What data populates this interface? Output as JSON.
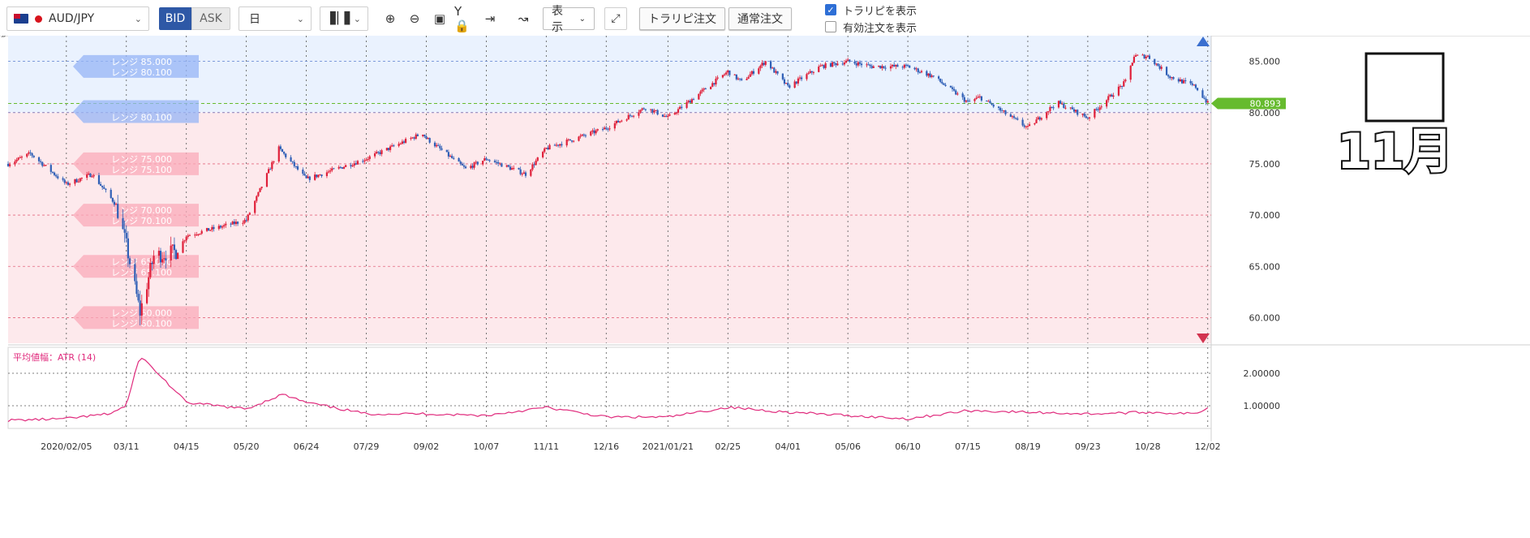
{
  "toolbar": {
    "symbol": "AUD/JPY",
    "bid_label": "BID",
    "ask_label": "ASK",
    "period": "日",
    "display_label": "表示",
    "trap_order_label": "トラリピ注文",
    "normal_order_label": "通常注文",
    "show_trap_label": "トラリピを表示",
    "show_trap_checked": true,
    "show_active_label": "有効注文を表示",
    "show_active_checked": false
  },
  "colors": {
    "up": "#e0203a",
    "down": "#2f5fb6",
    "upper_zone": "#eaf2fe",
    "lower_zone": "#fde9ec",
    "current_price": "#66bb2e",
    "atr_line": "#e02b7d"
  },
  "annotation": {
    "text": "11月"
  },
  "price_axis": {
    "ticks": [
      "85.000",
      "80.000",
      "75.000",
      "70.000",
      "65.000",
      "60.000"
    ],
    "current_price": "80.893"
  },
  "indicator": {
    "label": "平均値幅：ATR (14)",
    "ticks": [
      "2.00000",
      "1.00000"
    ]
  },
  "range_labels": [
    {
      "top": "レンジ 85.000",
      "bottom": "レンジ 80.100",
      "color": "blue",
      "price": 84.5
    },
    {
      "top": "",
      "bottom": "レンジ 80.100",
      "color": "blue",
      "price": 80.1
    },
    {
      "top": "レンジ 75.000",
      "bottom": "レンジ 75.100",
      "color": "red",
      "price": 75.0
    },
    {
      "top": "レンジ 70.000",
      "bottom": "レンジ 70.100",
      "color": "red",
      "price": 70.0
    },
    {
      "top": "レンジ 65.000",
      "bottom": "レンジ 65.100",
      "color": "red",
      "price": 65.0
    },
    {
      "top": "レンジ 60.000",
      "bottom": "レンジ 60.100",
      "color": "red",
      "price": 60.0
    }
  ],
  "chart_data": {
    "type": "candlestick",
    "symbol": "AUD/JPY",
    "x_ticks": [
      "2020/02/05",
      "03/11",
      "04/15",
      "05/20",
      "06/24",
      "07/29",
      "09/02",
      "10/07",
      "11/11",
      "12/16",
      "2021/01/21",
      "02/25",
      "04/01",
      "05/06",
      "06/10",
      "07/15",
      "08/19",
      "09/23",
      "10/28",
      "12/02"
    ],
    "ylim": [
      57.5,
      87.5
    ],
    "range_boundary": 80.0,
    "current_price": 80.893,
    "price_path": [
      {
        "x": "2020/01/02",
        "y": 75.0
      },
      {
        "x": "2020/01/15",
        "y": 76.0
      },
      {
        "x": "2020/02/05",
        "y": 73.0
      },
      {
        "x": "2020/02/20",
        "y": 74.0
      },
      {
        "x": "2020/03/05",
        "y": 71.0
      },
      {
        "x": "2020/03/11",
        "y": 67.0
      },
      {
        "x": "2020/03/19",
        "y": 60.5
      },
      {
        "x": "2020/03/27",
        "y": 66.0
      },
      {
        "x": "2020/04/10",
        "y": 66.5
      },
      {
        "x": "2020/04/15",
        "y": 68.0
      },
      {
        "x": "2020/05/20",
        "y": 69.5
      },
      {
        "x": "2020/06/08",
        "y": 76.5
      },
      {
        "x": "2020/06/24",
        "y": 73.5
      },
      {
        "x": "2020/07/29",
        "y": 75.5
      },
      {
        "x": "2020/08/31",
        "y": 78.0
      },
      {
        "x": "2020/09/02",
        "y": 77.5
      },
      {
        "x": "2020/09/25",
        "y": 74.5
      },
      {
        "x": "2020/10/07",
        "y": 75.5
      },
      {
        "x": "2020/10/30",
        "y": 74.0
      },
      {
        "x": "2020/11/11",
        "y": 76.5
      },
      {
        "x": "2020/12/16",
        "y": 78.5
      },
      {
        "x": "2021/01/08",
        "y": 80.5
      },
      {
        "x": "2021/01/21",
        "y": 79.5
      },
      {
        "x": "2021/02/25",
        "y": 84.0
      },
      {
        "x": "2021/03/05",
        "y": 83.0
      },
      {
        "x": "2021/03/19",
        "y": 85.0
      },
      {
        "x": "2021/04/01",
        "y": 82.5
      },
      {
        "x": "2021/04/20",
        "y": 84.5
      },
      {
        "x": "2021/05/06",
        "y": 85.0
      },
      {
        "x": "2021/05/20",
        "y": 84.5
      },
      {
        "x": "2021/06/10",
        "y": 84.5
      },
      {
        "x": "2021/06/25",
        "y": 83.5
      },
      {
        "x": "2021/07/15",
        "y": 81.0
      },
      {
        "x": "2021/07/22",
        "y": 81.5
      },
      {
        "x": "2021/08/19",
        "y": 78.5
      },
      {
        "x": "2021/09/05",
        "y": 81.0
      },
      {
        "x": "2021/09/23",
        "y": 79.5
      },
      {
        "x": "2021/10/15",
        "y": 83.0
      },
      {
        "x": "2021/10/20",
        "y": 85.5
      },
      {
        "x": "2021/10/28",
        "y": 85.5
      },
      {
        "x": "2021/11/10",
        "y": 83.5
      },
      {
        "x": "2021/11/25",
        "y": 82.5
      },
      {
        "x": "2021/12/02",
        "y": 80.9
      }
    ],
    "atr": {
      "name": "平均値幅：ATR (14)",
      "ylim": [
        0.3,
        2.8
      ],
      "ticks": [
        1.0,
        2.0
      ],
      "points": [
        {
          "x": "2020/01/02",
          "y": 0.55
        },
        {
          "x": "2020/02/05",
          "y": 0.6
        },
        {
          "x": "2020/03/01",
          "y": 0.75
        },
        {
          "x": "2020/03/11",
          "y": 1.0
        },
        {
          "x": "2020/03/19",
          "y": 2.55
        },
        {
          "x": "2020/04/02",
          "y": 1.8
        },
        {
          "x": "2020/04/15",
          "y": 1.1
        },
        {
          "x": "2020/05/20",
          "y": 0.9
        },
        {
          "x": "2020/06/10",
          "y": 1.35
        },
        {
          "x": "2020/06/24",
          "y": 1.1
        },
        {
          "x": "2020/07/29",
          "y": 0.75
        },
        {
          "x": "2020/09/02",
          "y": 0.75
        },
        {
          "x": "2020/10/07",
          "y": 0.7
        },
        {
          "x": "2020/11/11",
          "y": 0.95
        },
        {
          "x": "2020/12/16",
          "y": 0.65
        },
        {
          "x": "2021/01/21",
          "y": 0.65
        },
        {
          "x": "2021/02/25",
          "y": 0.95
        },
        {
          "x": "2021/04/01",
          "y": 0.8
        },
        {
          "x": "2021/05/06",
          "y": 0.7
        },
        {
          "x": "2021/06/10",
          "y": 0.6
        },
        {
          "x": "2021/07/15",
          "y": 0.85
        },
        {
          "x": "2021/08/19",
          "y": 0.8
        },
        {
          "x": "2021/09/23",
          "y": 0.75
        },
        {
          "x": "2021/10/28",
          "y": 0.8
        },
        {
          "x": "2021/11/25",
          "y": 0.75
        },
        {
          "x": "2021/12/02",
          "y": 0.95
        }
      ]
    }
  }
}
